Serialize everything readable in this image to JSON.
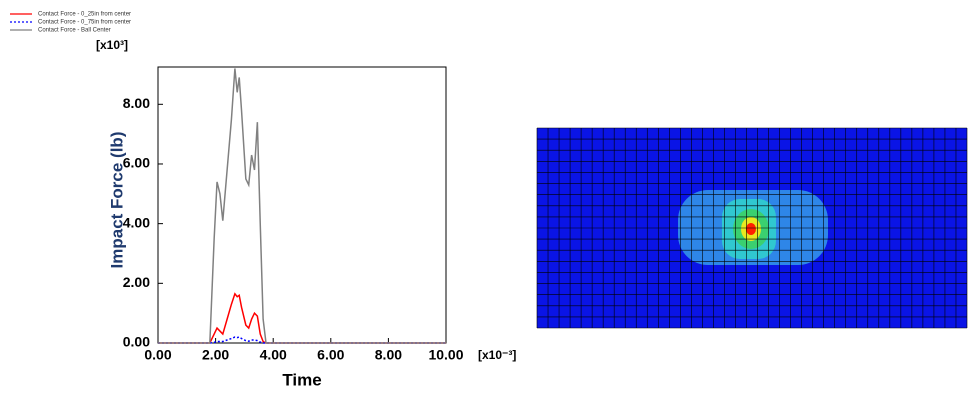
{
  "chart_data": {
    "type": "line",
    "y_label": "Impact Force (lb)",
    "x_label": "Time",
    "y_multiplier": "[x10³]",
    "x_multiplier": "[x10⁻³]",
    "x": [
      0,
      1.8,
      1.95,
      2.05,
      2.15,
      2.25,
      2.4,
      2.55,
      2.67,
      2.75,
      2.82,
      2.9,
      3.05,
      3.15,
      3.25,
      3.35,
      3.45,
      3.55,
      3.65,
      3.75,
      4.0,
      10
    ],
    "series": [
      {
        "name": "Contact Force - 0_25in from center",
        "color": "#ff0000",
        "dash": false,
        "values": [
          0,
          0,
          0.3,
          0.5,
          0.4,
          0.3,
          0.8,
          1.3,
          1.65,
          1.55,
          1.6,
          1.2,
          0.6,
          0.5,
          0.8,
          1.0,
          0.9,
          0.3,
          0.05,
          0,
          0,
          0
        ]
      },
      {
        "name": "Contact Force - 0_75in from center",
        "color": "#0000ff",
        "dash": true,
        "values": [
          0,
          0,
          0.02,
          0.05,
          0.05,
          0.05,
          0.1,
          0.15,
          0.2,
          0.18,
          0.2,
          0.15,
          0.08,
          0.06,
          0.1,
          0.1,
          0.08,
          0.03,
          0,
          0,
          0,
          0
        ]
      },
      {
        "name": "Contact Force - Ball Center",
        "color": "#808080",
        "dash": false,
        "values": [
          0,
          0,
          3.5,
          5.4,
          5.0,
          4.1,
          5.8,
          7.5,
          9.2,
          8.4,
          8.9,
          7.8,
          5.5,
          5.3,
          6.3,
          5.8,
          7.4,
          4.0,
          0.8,
          0,
          0,
          0
        ]
      }
    ],
    "xlim": [
      0,
      10
    ],
    "ylim": [
      0,
      9.25
    ],
    "xticks": [
      {
        "value": 0,
        "label": "0.00"
      },
      {
        "value": 2,
        "label": "2.00"
      },
      {
        "value": 4,
        "label": "4.00"
      },
      {
        "value": 6,
        "label": "6.00"
      },
      {
        "value": 8,
        "label": "8.00"
      },
      {
        "value": 10,
        "label": "10.00"
      }
    ],
    "yticks": [
      {
        "value": 0,
        "label": "0.00"
      },
      {
        "value": 2,
        "label": "2.00"
      },
      {
        "value": 4,
        "label": "4.00"
      },
      {
        "value": 6,
        "label": "6.00"
      },
      {
        "value": 8,
        "label": "8.00"
      }
    ],
    "legend": "top-left"
  }
}
